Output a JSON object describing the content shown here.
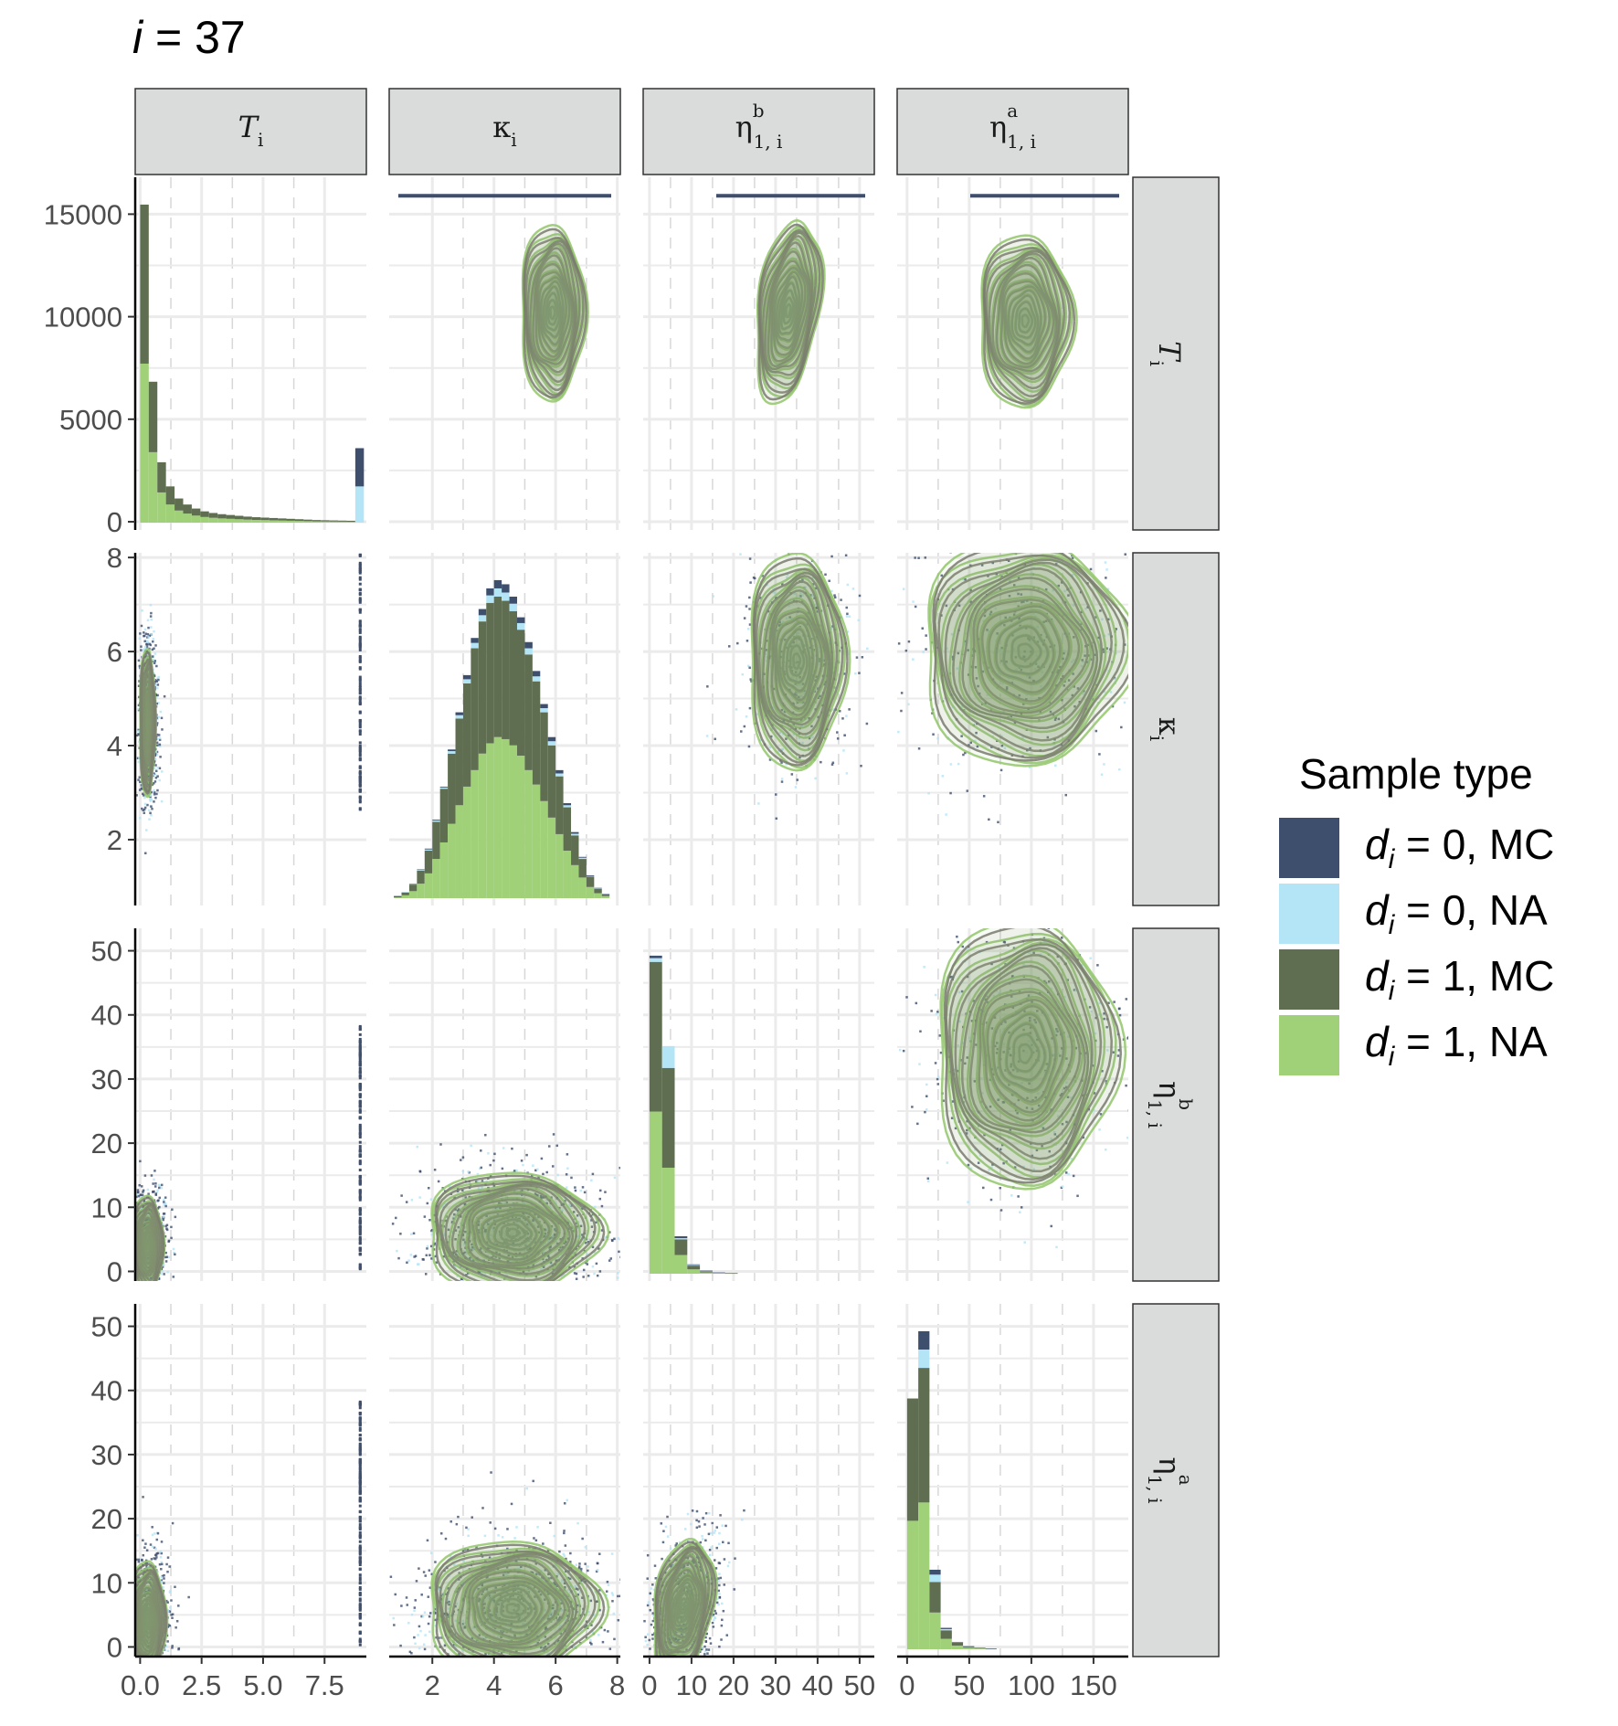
{
  "title": {
    "prefix": "i",
    "suffix": " = 37"
  },
  "colors": {
    "d0_mc": "#3e4f6e",
    "d0_na": "#b3e5f7",
    "d1_mc": "#5f6e50",
    "d1_na": "#a0d179",
    "contour_mc": "#7a7a6e",
    "contour_na": "#93c66b",
    "strip_fill": "#d9dcdb",
    "grid": "#ebebeb"
  },
  "legend": {
    "title": "Sample type",
    "items": [
      {
        "var": "d",
        "sub": "i",
        "text": " = 0, MC",
        "color_key": "d0_mc"
      },
      {
        "var": "d",
        "sub": "i",
        "text": " = 0, NA",
        "color_key": "d0_na"
      },
      {
        "var": "d",
        "sub": "i",
        "text": " = 1, MC",
        "color_key": "d1_mc"
      },
      {
        "var": "d",
        "sub": "i",
        "text": " = 1, NA",
        "color_key": "d1_na"
      }
    ]
  },
  "chart_data": {
    "type": "pairs",
    "variables": [
      {
        "name": "T",
        "sub": "i",
        "sup": "",
        "italic": true,
        "lim": [
          -0.2,
          9.2
        ],
        "ticks": [
          "0.0",
          "2.5",
          "5.0",
          "7.5"
        ],
        "tick_values": [
          0,
          2.5,
          5,
          7.5
        ]
      },
      {
        "name": "κ",
        "sub": "i",
        "sup": "",
        "italic": false,
        "lim": [
          0.6,
          8.1
        ],
        "ticks": [
          "2",
          "4",
          "6",
          "8"
        ],
        "tick_values": [
          2,
          4,
          6,
          8
        ]
      },
      {
        "name": "η",
        "sub": "1, i",
        "sup": "b",
        "italic": false,
        "lim": [
          -1.5,
          53.5
        ],
        "ticks": [
          "0",
          "10",
          "20",
          "30",
          "40",
          "50"
        ],
        "tick_values": [
          0,
          10,
          20,
          30,
          40,
          50
        ]
      },
      {
        "name": "η",
        "sub": "1, i",
        "sup": "a",
        "italic": false,
        "lim": [
          -8,
          178
        ],
        "ticks": [
          "0",
          "50",
          "100",
          "150"
        ],
        "tick_values": [
          0,
          50,
          100,
          150
        ]
      }
    ],
    "row_axes": [
      {
        "lim": [
          -400,
          16800
        ],
        "ticks": [
          "0",
          "5000",
          "10000",
          "15000"
        ],
        "tick_values": [
          0,
          5000,
          10000,
          15000
        ]
      },
      {
        "lim": [
          0.6,
          8.1
        ],
        "ticks": [
          "2",
          "4",
          "6",
          "8"
        ],
        "tick_values": [
          2,
          4,
          6,
          8
        ]
      },
      {
        "lim": [
          -1.5,
          53.5
        ],
        "ticks": [
          "0",
          "10",
          "20",
          "30",
          "40",
          "50"
        ],
        "tick_values": [
          0,
          10,
          20,
          30,
          40,
          50
        ]
      },
      {
        "lim": [
          -1.5,
          53.5
        ],
        "ticks": [
          "0",
          "10",
          "20",
          "30",
          "40",
          "50"
        ],
        "tick_values": [
          0,
          10,
          20,
          30,
          40,
          50
        ]
      }
    ],
    "histograms": [
      {
        "var": 0,
        "x": [
          0.0,
          0.35,
          0.7,
          1.05,
          1.4,
          1.75,
          2.1,
          2.45,
          2.8,
          3.15,
          3.5,
          3.85,
          4.2,
          4.55,
          4.9,
          5.25,
          5.6,
          5.95,
          6.3,
          6.65,
          7.0,
          7.35,
          7.7,
          8.05,
          8.4,
          8.75
        ],
        "width": 0.35,
        "total": [
          15800,
          7000,
          3000,
          1800,
          1200,
          900,
          700,
          560,
          480,
          420,
          380,
          340,
          300,
          270,
          250,
          230,
          210,
          190,
          170,
          150,
          130,
          120,
          110,
          100,
          90,
          3700
        ],
        "d1_na": [
          7900,
          3500,
          1500,
          900,
          600,
          450,
          350,
          280,
          240,
          210,
          190,
          170,
          150,
          135,
          125,
          115,
          105,
          95,
          85,
          75,
          65,
          60,
          55,
          50,
          45,
          0
        ],
        "d1_mc": [
          7900,
          3500,
          1500,
          900,
          600,
          450,
          350,
          280,
          240,
          210,
          190,
          170,
          150,
          135,
          125,
          115,
          105,
          95,
          85,
          75,
          65,
          60,
          55,
          50,
          45,
          0
        ],
        "d0_na": [
          0,
          0,
          0,
          0,
          0,
          0,
          0,
          0,
          0,
          0,
          0,
          0,
          0,
          0,
          0,
          0,
          0,
          0,
          0,
          0,
          0,
          0,
          0,
          0,
          0,
          1800
        ]
      },
      {
        "var": 1,
        "x": [
          0.75,
          1.0,
          1.25,
          1.5,
          1.75,
          2.0,
          2.25,
          2.5,
          2.75,
          3.0,
          3.25,
          3.5,
          3.75,
          4.0,
          4.25,
          4.5,
          4.75,
          5.0,
          5.25,
          5.5,
          5.75,
          6.0,
          6.25,
          6.5,
          6.75,
          7.0,
          7.25,
          7.5
        ],
        "width": 0.25,
        "total": [
          0.05,
          0.15,
          0.35,
          0.7,
          1.2,
          1.9,
          2.7,
          3.6,
          4.5,
          5.4,
          6.3,
          7.0,
          7.5,
          7.7,
          7.6,
          7.3,
          6.8,
          6.2,
          5.5,
          4.7,
          3.9,
          3.1,
          2.3,
          1.6,
          1.0,
          0.55,
          0.25,
          0.1
        ],
        "d1_na": [
          0.02,
          0.07,
          0.17,
          0.35,
          0.6,
          0.95,
          1.35,
          1.8,
          2.25,
          2.7,
          3.1,
          3.5,
          3.75,
          3.9,
          3.85,
          3.7,
          3.45,
          3.1,
          2.75,
          2.35,
          1.95,
          1.55,
          1.15,
          0.8,
          0.5,
          0.27,
          0.12,
          0.05
        ],
        "d1_mc": [
          0.03,
          0.07,
          0.16,
          0.32,
          0.55,
          0.9,
          1.3,
          1.7,
          2.1,
          2.5,
          2.95,
          3.2,
          3.4,
          3.4,
          3.35,
          3.25,
          3.05,
          2.8,
          2.5,
          2.15,
          1.75,
          1.4,
          1.05,
          0.72,
          0.45,
          0.25,
          0.11,
          0.04
        ],
        "d0_na": [
          0,
          0.01,
          0.01,
          0.02,
          0.03,
          0.03,
          0.03,
          0.06,
          0.08,
          0.1,
          0.13,
          0.15,
          0.18,
          0.2,
          0.2,
          0.18,
          0.16,
          0.15,
          0.12,
          0.1,
          0.1,
          0.07,
          0.05,
          0.04,
          0.03,
          0.01,
          0.01,
          0.01
        ]
      },
      {
        "var": 2,
        "x": [
          0.0,
          3.0,
          6.0,
          9.0,
          12.0,
          15.0,
          18.0
        ],
        "width": 3.0,
        "total": [
          51,
          36,
          6,
          1.5,
          0.5,
          0.2,
          0.1
        ],
        "d1_na": [
          26,
          17,
          3,
          0.7,
          0.2,
          0.1,
          0.05
        ],
        "d1_mc": [
          24,
          16,
          2.5,
          0.6,
          0.2,
          0.05,
          0.03
        ],
        "d0_na": [
          0.6,
          3.5,
          0.2,
          0.1,
          0.05,
          0.02,
          0.01
        ]
      },
      {
        "var": 3,
        "x": [
          0.0,
          9.0,
          18.0,
          27.0,
          36.0,
          45.0,
          54.0,
          63.0
        ],
        "width": 9.0,
        "total": [
          41,
          52,
          13,
          3.5,
          1.2,
          0.5,
          0.25,
          0.1
        ],
        "d1_na": [
          21,
          24,
          6,
          1.7,
          0.6,
          0.25,
          0.12,
          0.05
        ],
        "d1_mc": [
          20,
          22,
          5,
          1.4,
          0.5,
          0.2,
          0.1,
          0.04
        ],
        "d0_na": [
          0,
          3,
          1.2,
          0.2,
          0.05,
          0.02,
          0.01,
          0
        ]
      }
    ],
    "densities": [
      {
        "row": 0,
        "col": 1,
        "center": [
          5.9,
          10200
        ],
        "spread": [
          2.0,
          8200
        ],
        "tilt": 0.0
      },
      {
        "row": 0,
        "col": 2,
        "center": [
          33,
          10300
        ],
        "spread": [
          15,
          8000
        ],
        "tilt": 0.35
      },
      {
        "row": 0,
        "col": 3,
        "center": [
          95,
          9800
        ],
        "spread": [
          72,
          8000
        ],
        "tilt": 0.0
      },
      {
        "row": 1,
        "col": 0,
        "center": [
          0.3,
          4.5
        ],
        "spread": [
          0.6,
          3.0
        ],
        "tilt": 0.0
      },
      {
        "row": 1,
        "col": 2,
        "center": [
          35,
          5.8
        ],
        "spread": [
          22,
          4.4
        ],
        "tilt": 0.0
      },
      {
        "row": 1,
        "col": 3,
        "center": [
          95,
          6.0
        ],
        "spread": [
          160,
          4.6
        ],
        "tilt": 0.0
      },
      {
        "row": 2,
        "col": 0,
        "center": [
          0.3,
          4.0
        ],
        "spread": [
          1.2,
          15
        ],
        "tilt": 0.0
      },
      {
        "row": 2,
        "col": 1,
        "center": [
          4.6,
          6.0
        ],
        "spread": [
          5.4,
          18
        ],
        "tilt": 0.0
      },
      {
        "row": 2,
        "col": 3,
        "center": [
          95,
          34
        ],
        "spread": [
          140,
          40
        ],
        "tilt": 0.0
      },
      {
        "row": 3,
        "col": 0,
        "center": [
          0.3,
          4.0
        ],
        "spread": [
          1.4,
          18
        ],
        "tilt": 0.0
      },
      {
        "row": 3,
        "col": 1,
        "center": [
          4.6,
          6.0
        ],
        "spread": [
          5.4,
          20
        ],
        "tilt": 0.0
      },
      {
        "row": 3,
        "col": 2,
        "center": [
          8,
          6.0
        ],
        "spread": [
          14,
          20
        ],
        "tilt": 0.3
      }
    ]
  }
}
